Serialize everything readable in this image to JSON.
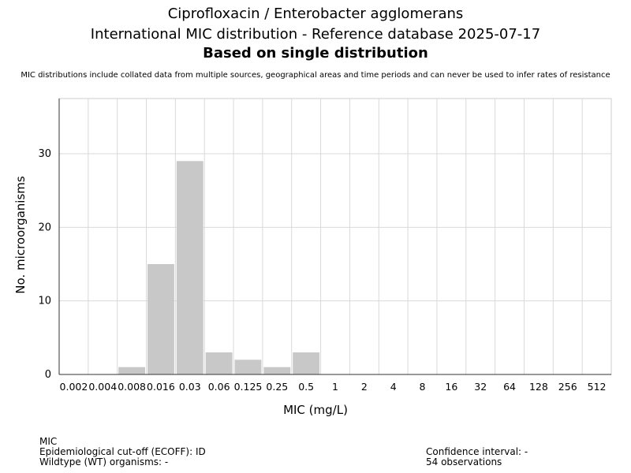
{
  "header": {
    "title": "Ciprofloxacin / Enterobacter agglomerans",
    "subtitle": "International MIC distribution - Reference database 2025-07-17",
    "subtitle2": "Based on single distribution",
    "note": "MIC distributions include collated data from multiple sources, geographical areas and time periods and can never be used to infer rates of resistance"
  },
  "chart_data": {
    "type": "bar",
    "categories": [
      "0.002",
      "0.004",
      "0.008",
      "0.016",
      "0.03",
      "0.06",
      "0.125",
      "0.25",
      "0.5",
      "1",
      "2",
      "4",
      "8",
      "16",
      "32",
      "64",
      "128",
      "256",
      "512"
    ],
    "values": [
      0,
      0,
      1,
      15,
      29,
      3,
      2,
      1,
      3,
      0,
      0,
      0,
      0,
      0,
      0,
      0,
      0,
      0,
      0
    ],
    "xlabel": "MIC (mg/L)",
    "ylabel": "No. microorganisms",
    "ylim": [
      0,
      37.5
    ],
    "yticks": [
      0,
      10,
      20,
      30
    ],
    "grid": true,
    "bar_color": "#c8c8c8"
  },
  "footer": {
    "mic_label": "MIC",
    "ecoff": "Epidemiological cut-off (ECOFF): ID",
    "wildtype": "Wildtype (WT) organisms:  -",
    "confidence": "Confidence interval: -",
    "observations": "54 observations"
  }
}
